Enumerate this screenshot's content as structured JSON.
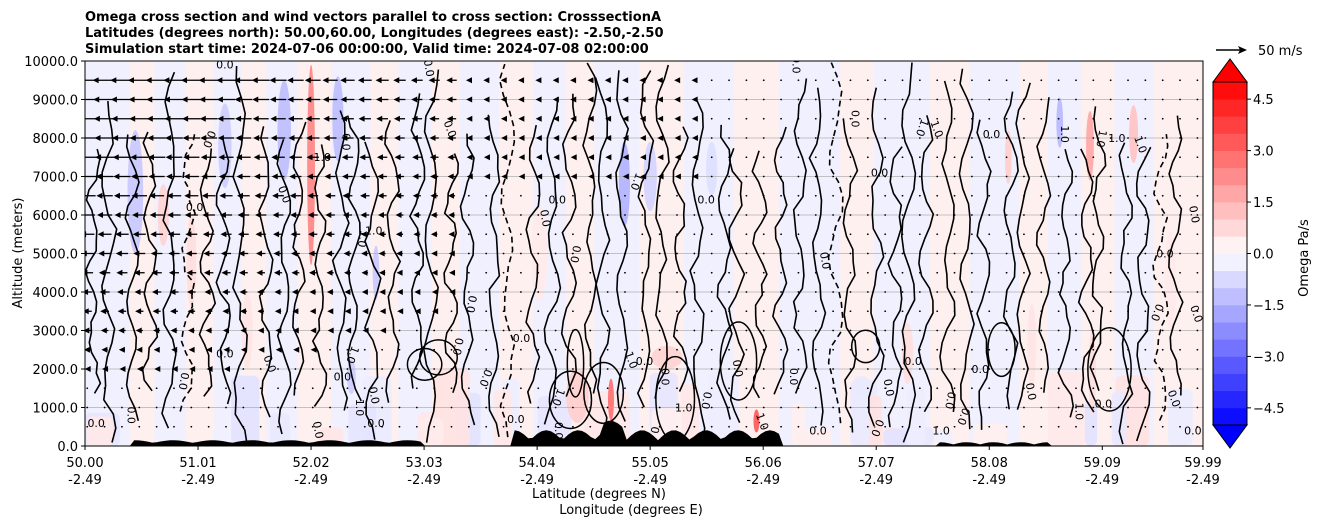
{
  "chart_data": {
    "type": "heatmap",
    "title_lines": [
      "Omega cross section and wind vectors parallel to cross section: CrosssectionA",
      "Latitudes (degrees north): 50.00,60.00, Longitudes (degrees east): -2.50,-2.50",
      "Simulation start time: 2024-07-06 00:00:00, Valid time: 2024-07-08 02:00:00"
    ],
    "xlabel_lines": [
      "Latitude (degrees N)",
      "Longitude (degrees E)"
    ],
    "ylabel": "Altitude (meters)",
    "xlim": [
      50.0,
      59.99
    ],
    "ylim": [
      0,
      10000
    ],
    "x_ticks": [
      {
        "value": 50.0,
        "lat": "50.00",
        "lon": "-2.49"
      },
      {
        "value": 51.01,
        "lat": "51.01",
        "lon": "-2.49"
      },
      {
        "value": 52.02,
        "lat": "52.02",
        "lon": "-2.49"
      },
      {
        "value": 53.03,
        "lat": "53.03",
        "lon": "-2.49"
      },
      {
        "value": 54.04,
        "lat": "54.04",
        "lon": "-2.49"
      },
      {
        "value": 55.05,
        "lat": "55.05",
        "lon": "-2.49"
      },
      {
        "value": 56.06,
        "lat": "56.06",
        "lon": "-2.49"
      },
      {
        "value": 57.07,
        "lat": "57.07",
        "lon": "-2.49"
      },
      {
        "value": 58.08,
        "lat": "58.08",
        "lon": "-2.49"
      },
      {
        "value": 59.09,
        "lat": "59.09",
        "lon": "-2.49"
      },
      {
        "value": 59.99,
        "lat": "59.99",
        "lon": "-2.49"
      }
    ],
    "y_ticks": [
      {
        "value": 0,
        "label": "0.0"
      },
      {
        "value": 1000,
        "label": "1000.0"
      },
      {
        "value": 2000,
        "label": "2000.0"
      },
      {
        "value": 3000,
        "label": "3000.0"
      },
      {
        "value": 4000,
        "label": "4000.0"
      },
      {
        "value": 5000,
        "label": "5000.0"
      },
      {
        "value": 6000,
        "label": "6000.0"
      },
      {
        "value": 7000,
        "label": "7000.0"
      },
      {
        "value": 8000,
        "label": "8000.0"
      },
      {
        "value": 9000,
        "label": "9000.0"
      },
      {
        "value": 10000,
        "label": "10000.0"
      }
    ],
    "grid": "horizontal",
    "colorbar": {
      "label": "Omega Pa/s",
      "range": [
        -5.0,
        5.0
      ],
      "extend": "both",
      "ticks": [
        {
          "value": 4.5,
          "label": "4.5"
        },
        {
          "value": 3.0,
          "label": "3.0"
        },
        {
          "value": 1.5,
          "label": "1.5"
        },
        {
          "value": 0.0,
          "label": "0.0"
        },
        {
          "value": -1.5,
          "label": "−1.5"
        },
        {
          "value": -3.0,
          "label": "−3.0"
        },
        {
          "value": -4.5,
          "label": "−4.5"
        }
      ],
      "neg_color": "#0000ff",
      "pos_color": "#ff0000"
    },
    "quiver_key": {
      "label": "50 m/s",
      "speed": 50
    },
    "omega_regions": [
      {
        "x": 50.45,
        "y": 6600,
        "w": 0.14,
        "h": 3200,
        "v": -1.0
      },
      {
        "x": 50.7,
        "y": 6000,
        "w": 0.1,
        "h": 1600,
        "v": 0.8
      },
      {
        "x": 50.95,
        "y": 4800,
        "w": 0.09,
        "h": 2400,
        "v": 0.6
      },
      {
        "x": 51.25,
        "y": 7800,
        "w": 0.12,
        "h": 2200,
        "v": -0.9
      },
      {
        "x": 51.45,
        "y": 3000,
        "w": 0.1,
        "h": 2000,
        "v": 0.5
      },
      {
        "x": 51.78,
        "y": 8200,
        "w": 0.12,
        "h": 2600,
        "v": -1.2
      },
      {
        "x": 52.02,
        "y": 7300,
        "w": 0.07,
        "h": 5200,
        "v": 2.2
      },
      {
        "x": 52.26,
        "y": 8500,
        "w": 0.1,
        "h": 2200,
        "v": -1.2
      },
      {
        "x": 52.6,
        "y": 4500,
        "w": 0.06,
        "h": 1400,
        "v": -1.0
      },
      {
        "x": 52.38,
        "y": 1800,
        "w": 0.08,
        "h": 900,
        "v": -0.9
      },
      {
        "x": 54.06,
        "y": 5000,
        "w": 0.14,
        "h": 2500,
        "v": 0.4
      },
      {
        "x": 54.4,
        "y": 1300,
        "w": 0.2,
        "h": 1400,
        "v": 0.9
      },
      {
        "x": 54.82,
        "y": 6800,
        "w": 0.1,
        "h": 2200,
        "v": -1.4
      },
      {
        "x": 55.05,
        "y": 7000,
        "w": 0.12,
        "h": 1800,
        "v": -0.8
      },
      {
        "x": 54.7,
        "y": 1200,
        "w": 0.05,
        "h": 1100,
        "v": 2.6
      },
      {
        "x": 55.2,
        "y": 2300,
        "w": 0.28,
        "h": 600,
        "v": 0.8
      },
      {
        "x": 55.6,
        "y": 7200,
        "w": 0.1,
        "h": 1400,
        "v": -0.6
      },
      {
        "x": 56.0,
        "y": 650,
        "w": 0.05,
        "h": 600,
        "v": 3.0
      },
      {
        "x": 57.35,
        "y": 2400,
        "w": 0.1,
        "h": 1600,
        "v": 0.6
      },
      {
        "x": 58.25,
        "y": 7500,
        "w": 0.06,
        "h": 1400,
        "v": 0.9
      },
      {
        "x": 58.46,
        "y": 2600,
        "w": 0.08,
        "h": 2200,
        "v": 0.5
      },
      {
        "x": 58.71,
        "y": 8400,
        "w": 0.06,
        "h": 1300,
        "v": -1.3
      },
      {
        "x": 58.98,
        "y": 7800,
        "w": 0.07,
        "h": 1800,
        "v": 1.6
      },
      {
        "x": 59.37,
        "y": 8100,
        "w": 0.08,
        "h": 1500,
        "v": 1.1
      },
      {
        "x": 59.0,
        "y": 1900,
        "w": 0.07,
        "h": 2200,
        "v": 0.6
      },
      {
        "x": 59.7,
        "y": 4300,
        "w": 0.1,
        "h": 2600,
        "v": 0.4
      }
    ],
    "contour_labels": [
      {
        "x": 51.25,
        "y": 9800,
        "text": "0.0"
      },
      {
        "x": 53.04,
        "y": 9800,
        "text": "0.0"
      },
      {
        "x": 56.32,
        "y": 9900,
        "text": "0.0"
      },
      {
        "x": 50.98,
        "y": 6100,
        "text": "0.0"
      },
      {
        "x": 51.08,
        "y": 8000,
        "text": "0.0"
      },
      {
        "x": 51.75,
        "y": 6500,
        "text": "0.0"
      },
      {
        "x": 52.12,
        "y": 7400,
        "text": "1.0"
      },
      {
        "x": 52.3,
        "y": 7900,
        "text": "0.0"
      },
      {
        "x": 52.45,
        "y": 5400,
        "text": "1.0"
      },
      {
        "x": 52.58,
        "y": 5500,
        "text": "1.0"
      },
      {
        "x": 53.23,
        "y": 8200,
        "text": "0.0"
      },
      {
        "x": 54.08,
        "y": 5900,
        "text": "0.0"
      },
      {
        "x": 54.22,
        "y": 6300,
        "text": "0.0"
      },
      {
        "x": 54.35,
        "y": 5000,
        "text": "0.0"
      },
      {
        "x": 54.9,
        "y": 6900,
        "text": "1.0"
      },
      {
        "x": 55.55,
        "y": 6300,
        "text": "0.0"
      },
      {
        "x": 56.58,
        "y": 4800,
        "text": "0.0"
      },
      {
        "x": 56.85,
        "y": 8500,
        "text": "0.0"
      },
      {
        "x": 57.1,
        "y": 7000,
        "text": "0.0"
      },
      {
        "x": 57.45,
        "y": 8300,
        "text": "1.0"
      },
      {
        "x": 57.58,
        "y": 8200,
        "text": "1.0"
      },
      {
        "x": 58.1,
        "y": 8000,
        "text": "0.0"
      },
      {
        "x": 58.72,
        "y": 8100,
        "text": "1.0"
      },
      {
        "x": 59.05,
        "y": 8000,
        "text": "1.0"
      },
      {
        "x": 59.22,
        "y": 7900,
        "text": "1.0"
      },
      {
        "x": 59.4,
        "y": 7800,
        "text": "1.0"
      },
      {
        "x": 59.88,
        "y": 6000,
        "text": "0.0"
      },
      {
        "x": 59.65,
        "y": 4900,
        "text": "0.0"
      },
      {
        "x": 53.42,
        "y": 3700,
        "text": "0.0"
      },
      {
        "x": 52.36,
        "y": 2400,
        "text": "1.0"
      },
      {
        "x": 52.3,
        "y": 1700,
        "text": "0.0"
      },
      {
        "x": 52.55,
        "y": 1300,
        "text": "0.0"
      },
      {
        "x": 52.42,
        "y": 1000,
        "text": "1.0"
      },
      {
        "x": 53.9,
        "y": 2700,
        "text": "0.0"
      },
      {
        "x": 54.2,
        "y": 1300,
        "text": "1.0"
      },
      {
        "x": 54.85,
        "y": 2200,
        "text": "1.0"
      },
      {
        "x": 55.0,
        "y": 2100,
        "text": "0.0"
      },
      {
        "x": 55.15,
        "y": 1800,
        "text": "0.0"
      },
      {
        "x": 55.52,
        "y": 1200,
        "text": "0.0"
      },
      {
        "x": 55.35,
        "y": 900,
        "text": "1.0"
      },
      {
        "x": 56.02,
        "y": 600,
        "text": "1.0"
      },
      {
        "x": 57.15,
        "y": 1500,
        "text": "0.0"
      },
      {
        "x": 57.4,
        "y": 2100,
        "text": "0.0"
      },
      {
        "x": 57.7,
        "y": 1200,
        "text": "0.0"
      },
      {
        "x": 57.82,
        "y": 800,
        "text": "0.0"
      },
      {
        "x": 58.0,
        "y": 1900,
        "text": "0.0"
      },
      {
        "x": 58.42,
        "y": 1400,
        "text": "0.0"
      },
      {
        "x": 58.85,
        "y": 900,
        "text": "1.0"
      },
      {
        "x": 59.1,
        "y": 1000,
        "text": "0.0"
      },
      {
        "x": 59.55,
        "y": 3500,
        "text": "0.0"
      },
      {
        "x": 59.9,
        "y": 3400,
        "text": "0.0"
      },
      {
        "x": 50.1,
        "y": 500,
        "text": "0.0"
      },
      {
        "x": 50.38,
        "y": 800,
        "text": "0.0"
      },
      {
        "x": 50.85,
        "y": 1700,
        "text": "0.0"
      },
      {
        "x": 51.25,
        "y": 2300,
        "text": "0.0"
      },
      {
        "x": 51.62,
        "y": 2100,
        "text": "0.0"
      },
      {
        "x": 52.05,
        "y": 400,
        "text": "0.0"
      },
      {
        "x": 52.6,
        "y": 500,
        "text": "0.0"
      },
      {
        "x": 53.3,
        "y": 2600,
        "text": "0.0"
      },
      {
        "x": 53.55,
        "y": 1800,
        "text": "0.0"
      },
      {
        "x": 53.85,
        "y": 600,
        "text": "0.0"
      },
      {
        "x": 55.8,
        "y": 2000,
        "text": "0.0"
      },
      {
        "x": 56.3,
        "y": 1800,
        "text": "0.0"
      },
      {
        "x": 56.55,
        "y": 300,
        "text": "0.0"
      },
      {
        "x": 57.05,
        "y": 500,
        "text": "0.0"
      },
      {
        "x": 59.7,
        "y": 1200,
        "text": "0.0"
      },
      {
        "x": 59.9,
        "y": 300,
        "text": "0.0"
      },
      {
        "x": 54.2,
        "y": 400,
        "text": "0.0"
      },
      {
        "x": 55.05,
        "y": 300,
        "text": "0.0"
      },
      {
        "x": 57.65,
        "y": 300,
        "text": "1.0"
      }
    ]
  }
}
